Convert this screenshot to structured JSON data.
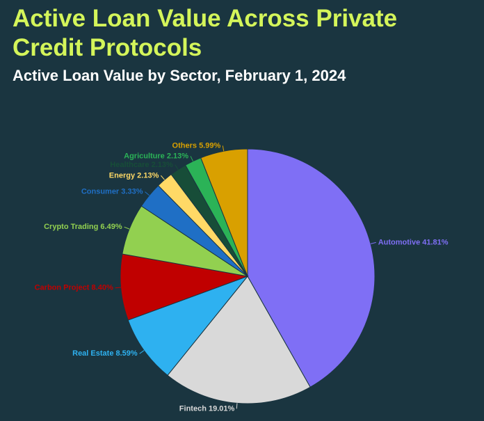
{
  "chart_data": {
    "type": "pie",
    "title": "Active Loan Value Across Private Credit Protocols",
    "subtitle": "Active Loan Value by Sector, February 1, 2024",
    "categories": [
      "Automotive",
      "Fintech",
      "Real Estate",
      "Carbon Project",
      "Crypto Trading",
      "Consumer",
      "Energy",
      "Healthcare",
      "Agriculture",
      "Others"
    ],
    "values": [
      41.81,
      19.01,
      8.59,
      8.4,
      6.49,
      3.33,
      2.13,
      2.13,
      2.13,
      5.99
    ],
    "value_labels": [
      "41.81%",
      "19.01%",
      "8.59%",
      "8.40%",
      "6.49%",
      "3.33%",
      "2.13%",
      "2.13%",
      "2.13%",
      "5.99%"
    ],
    "colors": [
      "#7f6ff5",
      "#d9d9d9",
      "#2eb1f0",
      "#c00000",
      "#92d050",
      "#1f6fc5",
      "#ffd966",
      "#174d38",
      "#2bb357",
      "#d9a000"
    ]
  }
}
